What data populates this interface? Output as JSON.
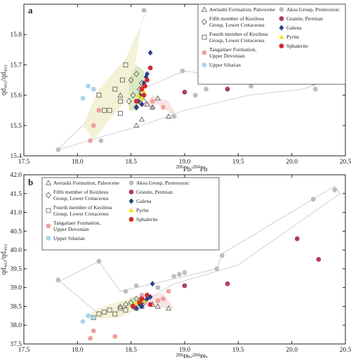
{
  "chart_data": [
    {
      "panel": "a",
      "type": "scatter",
      "xlabel_sup": "206",
      "xlabel_mid": "Pb/",
      "xlabel_sup2": "204",
      "xlabel_end": "Pb",
      "ylabel": "qd₄₀₂/qd₄₀₂",
      "xlim": [
        17.5,
        20.5
      ],
      "ylim": [
        15.4,
        15.9
      ],
      "xticks": [
        "17.5",
        "18.0",
        "18.5",
        "19.0",
        "19.5",
        "20.0",
        "20.5"
      ],
      "yticks": [
        "15.4",
        "15.5",
        "15.6",
        "15.7",
        "15.8"
      ],
      "legend": [
        {
          "label": [
            "Aertashi Formation, Paleocene"
          ],
          "marker": "triangle-open",
          "color": "#555555"
        },
        {
          "label": [
            "Aksu Group, Proterozoic"
          ],
          "marker": "circle",
          "color": "#bdbdbd"
        },
        {
          "label": [
            "Fifth member of Kezilesu",
            "Group, Lower Cretaceous"
          ],
          "marker": "diamond-open",
          "color": "#555555"
        },
        {
          "label": [
            "Granite, Permian"
          ],
          "marker": "circle",
          "color": "#b03a6e"
        },
        {
          "label": [
            "Fourth member of Kezilesu",
            "Group, Lower Cretaceous"
          ],
          "marker": "square-open",
          "color": "#555555"
        },
        {
          "label": [
            "Galena"
          ],
          "marker": "diamond",
          "color": "#2b3f86"
        },
        {
          "label": [
            "Tangaitaer Formation,",
            "Upper Devonian"
          ],
          "marker": "circle",
          "color": "#f0a09a"
        },
        {
          "label": [
            "Pyrite"
          ],
          "marker": "triangle",
          "color": "#f5e000"
        },
        {
          "label": [
            "Upper Silurian"
          ],
          "marker": "circle",
          "color": "#a8d4ec"
        },
        {
          "label": [
            "Sphalerite"
          ],
          "marker": "circle",
          "color": "#d42a2a"
        }
      ],
      "series": [
        {
          "key": "aksu",
          "marker": "circle",
          "color": "#bdbdbd",
          "points": [
            [
              17.82,
              15.42
            ],
            [
              18.22,
              15.45
            ],
            [
              18.62,
              15.88
            ],
            [
              18.98,
              15.68
            ],
            [
              19.2,
              15.62
            ],
            [
              19.4,
              15.62
            ],
            [
              19.62,
              15.63
            ],
            [
              20.1,
              15.66
            ],
            [
              20.2,
              15.64
            ],
            [
              20.22,
              15.62
            ],
            [
              20.4,
              15.68
            ],
            [
              18.7,
              15.56
            ],
            [
              18.9,
              15.53
            ],
            [
              19.1,
              15.6
            ]
          ]
        },
        {
          "key": "aertashi",
          "marker": "triangle-open",
          "color": "#555555",
          "points": [
            [
              18.4,
              15.6
            ],
            [
              18.55,
              15.5
            ],
            [
              18.6,
              15.52
            ],
            [
              18.7,
              15.56
            ],
            [
              18.75,
              15.59
            ],
            [
              18.65,
              15.57
            ],
            [
              18.85,
              15.53
            ]
          ]
        },
        {
          "key": "fifth",
          "marker": "diamond-open",
          "color": "#555555",
          "points": [
            [
              18.5,
              15.65
            ],
            [
              18.52,
              15.6
            ],
            [
              18.55,
              15.67
            ],
            [
              18.58,
              15.62
            ],
            [
              18.6,
              15.64
            ],
            [
              18.62,
              15.58
            ],
            [
              18.55,
              15.56
            ],
            [
              18.48,
              15.58
            ],
            [
              18.6,
              15.61
            ]
          ]
        },
        {
          "key": "fourth",
          "marker": "square-open",
          "color": "#555555",
          "points": [
            [
              18.2,
              15.6
            ],
            [
              18.25,
              15.55
            ],
            [
              18.3,
              15.55
            ],
            [
              18.35,
              15.62
            ],
            [
              18.4,
              15.58
            ],
            [
              18.42,
              15.65
            ],
            [
              18.45,
              15.7
            ],
            [
              18.4,
              15.54
            ]
          ]
        },
        {
          "key": "tangaitaer",
          "marker": "circle",
          "color": "#f0a09a",
          "points": [
            [
              18.12,
              15.45
            ],
            [
              18.15,
              15.5
            ],
            [
              18.2,
              15.55
            ],
            [
              18.6,
              15.57
            ],
            [
              18.7,
              15.58
            ],
            [
              18.8,
              15.56
            ]
          ]
        },
        {
          "key": "silurian",
          "marker": "circle",
          "color": "#a8d4ec",
          "points": [
            [
              18.1,
              15.63
            ],
            [
              18.05,
              15.59
            ],
            [
              18.15,
              15.62
            ]
          ]
        },
        {
          "key": "granite",
          "marker": "circle",
          "color": "#b03a6e",
          "points": [
            [
              19.0,
              15.61
            ],
            [
              19.4,
              15.62
            ],
            [
              20.05,
              15.66
            ],
            [
              20.25,
              15.66
            ]
          ]
        },
        {
          "key": "galena",
          "marker": "diamond",
          "color": "#2b3f86",
          "points": [
            [
              18.55,
              15.56
            ],
            [
              18.57,
              15.58
            ],
            [
              18.58,
              15.6
            ],
            [
              18.6,
              15.62
            ],
            [
              18.62,
              15.64
            ],
            [
              18.64,
              15.66
            ],
            [
              18.65,
              15.67
            ],
            [
              18.68,
              15.74
            ],
            [
              18.6,
              15.57
            ],
            [
              18.62,
              15.6
            ]
          ]
        },
        {
          "key": "pyrite",
          "marker": "triangle",
          "color": "#f5e000",
          "points": [
            [
              18.57,
              15.6
            ],
            [
              18.62,
              15.61
            ],
            [
              18.6,
              15.59
            ]
          ]
        },
        {
          "key": "sphalerite",
          "marker": "circle",
          "color": "#d42a2a",
          "points": [
            [
              18.55,
              15.58
            ],
            [
              18.6,
              15.62
            ],
            [
              18.62,
              15.6
            ],
            [
              18.65,
              15.65
            ],
            [
              18.68,
              15.69
            ],
            [
              18.63,
              15.63
            ]
          ]
        }
      ]
    },
    {
      "panel": "b",
      "type": "scatter",
      "xlabel_sup": "206",
      "xlabel_mid": "Pb/",
      "xlabel_sup2": "204",
      "xlabel_end": "Pb",
      "ylabel": "qd₄₀₂/qd₄₀₂",
      "xlim": [
        17.5,
        20.5
      ],
      "ylim": [
        37.5,
        42.0
      ],
      "xticks": [
        "17.5",
        "18.0",
        "18.5",
        "19.0",
        "19.5",
        "20.0",
        "20.5"
      ],
      "yticks": [
        "37.5",
        "38.0",
        "38.5",
        "39.0",
        "39.5",
        "40.0",
        "40.5",
        "41.0",
        "41.5",
        "42.0"
      ],
      "legend": [
        {
          "label": [
            "Aertashi Formation, Paleocene"
          ],
          "marker": "triangle-open",
          "color": "#555555"
        },
        {
          "label": [
            "Aksu Group, Proterozoic"
          ],
          "marker": "circle",
          "color": "#bdbdbd"
        },
        {
          "label": [
            "Fifth member of Kezilesu",
            "Group, Lower Cretaceous"
          ],
          "marker": "diamond-open",
          "color": "#555555"
        },
        {
          "label": [
            "Granite, Permian"
          ],
          "marker": "circle",
          "color": "#b03a6e"
        },
        {
          "label": [
            "Fourth member of Kezilesu",
            "Group, Lower Cretaceous"
          ],
          "marker": "square-open",
          "color": "#555555"
        },
        {
          "label": [
            "Galena"
          ],
          "marker": "diamond",
          "color": "#2b3f86"
        },
        {
          "label": [
            "Tangaitaer Formation,",
            "Upper Devonian"
          ],
          "marker": "circle",
          "color": "#f0a09a"
        },
        {
          "label": [
            "Pyrite"
          ],
          "marker": "triangle",
          "color": "#f5e000"
        },
        {
          "label": [
            "Upper Silurian"
          ],
          "marker": "circle",
          "color": "#a8d4ec"
        },
        {
          "label": [
            "Sphalerite"
          ],
          "marker": "circle",
          "color": "#d42a2a"
        }
      ],
      "series": [
        {
          "key": "aksu",
          "marker": "circle",
          "color": "#bdbdbd",
          "points": [
            [
              17.82,
              39.2
            ],
            [
              18.2,
              39.7
            ],
            [
              18.45,
              38.9
            ],
            [
              18.6,
              38.8
            ],
            [
              18.9,
              39.3
            ],
            [
              18.95,
              39.35
            ],
            [
              19.0,
              39.4
            ],
            [
              19.3,
              39.5
            ],
            [
              19.35,
              39.85
            ],
            [
              20.2,
              41.35
            ],
            [
              20.4,
              41.6
            ],
            [
              18.75,
              39.0
            ],
            [
              18.55,
              39.05
            ]
          ]
        },
        {
          "key": "aertashi",
          "marker": "triangle-open",
          "color": "#555555",
          "points": [
            [
              18.4,
              38.5
            ],
            [
              18.6,
              38.5
            ],
            [
              18.7,
              38.55
            ],
            [
              18.75,
              38.5
            ],
            [
              18.85,
              38.45
            ],
            [
              18.55,
              38.45
            ]
          ]
        },
        {
          "key": "fifth",
          "marker": "diamond-open",
          "color": "#555555",
          "points": [
            [
              18.45,
              38.55
            ],
            [
              18.5,
              38.6
            ],
            [
              18.55,
              38.7
            ],
            [
              18.58,
              38.65
            ],
            [
              18.62,
              38.6
            ],
            [
              18.52,
              38.5
            ]
          ]
        },
        {
          "key": "fourth",
          "marker": "square-open",
          "color": "#555555",
          "points": [
            [
              18.2,
              38.3
            ],
            [
              18.25,
              38.35
            ],
            [
              18.3,
              38.4
            ],
            [
              18.35,
              38.3
            ],
            [
              18.4,
              38.45
            ],
            [
              18.45,
              38.4
            ],
            [
              18.15,
              38.2
            ]
          ]
        },
        {
          "key": "tangaitaer",
          "marker": "circle",
          "color": "#f0a09a",
          "points": [
            [
              18.12,
              37.65
            ],
            [
              18.15,
              37.85
            ],
            [
              18.35,
              37.7
            ],
            [
              18.75,
              38.65
            ],
            [
              18.8,
              38.7
            ],
            [
              18.85,
              38.9
            ],
            [
              18.6,
              38.75
            ]
          ]
        },
        {
          "key": "silurian",
          "marker": "circle",
          "color": "#a8d4ec",
          "points": [
            [
              18.05,
              38.1
            ],
            [
              18.1,
              38.25
            ],
            [
              18.15,
              38.2
            ]
          ]
        },
        {
          "key": "granite",
          "marker": "circle",
          "color": "#b03a6e",
          "points": [
            [
              19.0,
              39.05
            ],
            [
              19.4,
              39.1
            ],
            [
              20.05,
              40.3
            ],
            [
              20.25,
              39.75
            ]
          ]
        },
        {
          "key": "galena",
          "marker": "diamond",
          "color": "#2b3f86",
          "points": [
            [
              18.55,
              38.45
            ],
            [
              18.58,
              38.55
            ],
            [
              18.6,
              38.6
            ],
            [
              18.62,
              38.65
            ],
            [
              18.65,
              38.7
            ],
            [
              18.68,
              38.75
            ],
            [
              18.7,
              39.1
            ],
            [
              18.6,
              38.5
            ]
          ]
        },
        {
          "key": "pyrite",
          "marker": "triangle",
          "color": "#f5e000",
          "points": [
            [
              18.55,
              38.6
            ],
            [
              18.62,
              38.65
            ]
          ]
        },
        {
          "key": "sphalerite",
          "marker": "circle",
          "color": "#d42a2a",
          "points": [
            [
              18.52,
              38.5
            ],
            [
              18.6,
              38.7
            ],
            [
              18.65,
              38.8
            ],
            [
              18.68,
              38.55
            ],
            [
              18.58,
              38.6
            ]
          ]
        }
      ],
      "fields": "same-as-panel-a"
    }
  ]
}
